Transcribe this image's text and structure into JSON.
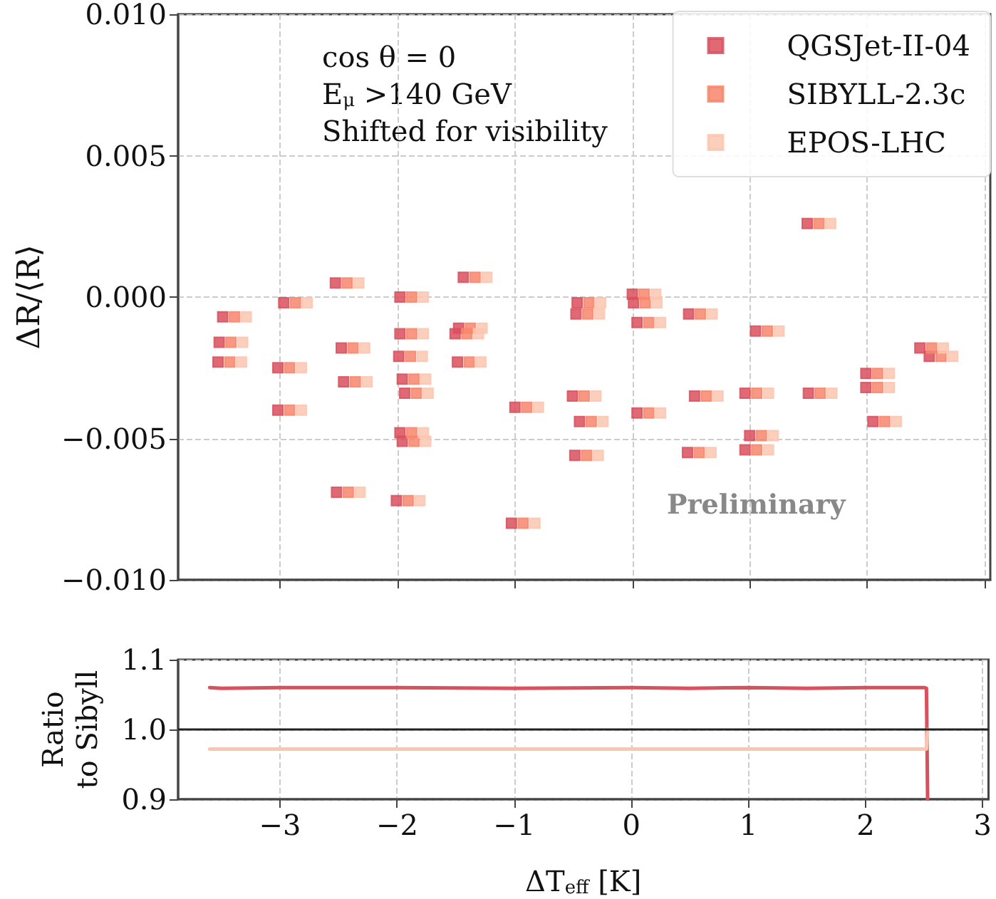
{
  "chart_data": [
    {
      "type": "scatter",
      "ylabel": "ΔR/⟨R⟩",
      "annotations": [
        "cos θ = 0",
        "E$_{μ}$ >140 GeV",
        "Shifted for visibility",
        "Preliminary"
      ],
      "marker": "square",
      "grid": true,
      "legend": "top right",
      "tick_labels": "y",
      "xlim": [
        -3.87,
        3.05
      ],
      "xticks": [
        -3,
        -2,
        -1,
        0,
        1,
        2,
        3
      ],
      "ylim": [
        -0.01,
        0.01
      ],
      "yticks": [
        {
          "value": -0.01,
          "label": "−0.010"
        },
        {
          "value": -0.005,
          "label": "−0.005"
        },
        {
          "value": 0,
          "label": "0.000"
        },
        {
          "value": 0.005,
          "label": "0.005"
        },
        {
          "value": 0.01,
          "label": "0.010"
        }
      ],
      "series": [
        {
          "name": "QGSJet-II-04",
          "color": "#d9505e",
          "x": [
            -3.49,
            -3.52,
            -3.53,
            -2.97,
            -3.02,
            -3.02,
            -2.53,
            -2.48,
            -2.46,
            -2.52,
            -1.98,
            -1.98,
            -1.99,
            -1.96,
            -1.94,
            -1.98,
            -1.96,
            -2.01,
            -1.44,
            -1.48,
            -1.51,
            -1.49,
            -1.03,
            -1.0,
            -0.47,
            -0.48,
            -0.51,
            -0.45,
            -0.49,
            0.0,
            0.01,
            0.04,
            0.04,
            0.48,
            0.53,
            0.47,
            1.05,
            0.96,
            1.0,
            0.96,
            1.49,
            1.5,
            1.99,
            1.99,
            2.05,
            2.45,
            2.53
          ],
          "values": [
            -0.0007,
            -0.0016,
            -0.0023,
            -0.0002,
            -0.0025,
            -0.004,
            0.0005,
            -0.0018,
            -0.003,
            -0.0069,
            0.0,
            -0.0013,
            -0.0021,
            -0.0029,
            -0.0034,
            -0.0048,
            -0.0051,
            -0.0072,
            0.0007,
            -0.0011,
            -0.0013,
            -0.0023,
            -0.008,
            -0.0039,
            -0.0002,
            -0.0006,
            -0.0035,
            -0.0044,
            -0.0056,
            0.0001,
            -0.0002,
            -0.0009,
            -0.0041,
            -0.0006,
            -0.0035,
            -0.0055,
            -0.0012,
            -0.0034,
            -0.0049,
            -0.0054,
            0.0026,
            -0.0034,
            -0.0027,
            -0.0032,
            -0.0044,
            -0.0018,
            -0.0021
          ]
        },
        {
          "name": "SIBYLL-2.3c",
          "color": "#f8866c",
          "x": [
            -3.39,
            -3.42,
            -3.43,
            -2.87,
            -2.92,
            -2.92,
            -2.43,
            -2.38,
            -2.36,
            -2.42,
            -1.88,
            -1.88,
            -1.89,
            -1.86,
            -1.84,
            -1.88,
            -1.86,
            -1.91,
            -1.34,
            -1.38,
            -1.41,
            -1.39,
            -0.93,
            -0.9,
            -0.37,
            -0.38,
            -0.41,
            -0.35,
            -0.39,
            0.1,
            0.11,
            0.14,
            0.14,
            0.58,
            0.63,
            0.57,
            1.15,
            1.06,
            1.1,
            1.06,
            1.59,
            1.6,
            2.09,
            2.09,
            2.15,
            2.55,
            2.63
          ],
          "values": [
            -0.0007,
            -0.0016,
            -0.0023,
            -0.0002,
            -0.0025,
            -0.004,
            0.0005,
            -0.0018,
            -0.003,
            -0.0069,
            0.0,
            -0.0013,
            -0.0021,
            -0.0029,
            -0.0034,
            -0.0048,
            -0.0051,
            -0.0072,
            0.0007,
            -0.0011,
            -0.0013,
            -0.0023,
            -0.008,
            -0.0039,
            -0.0002,
            -0.0006,
            -0.0035,
            -0.0044,
            -0.0056,
            0.0001,
            -0.0002,
            -0.0009,
            -0.0041,
            -0.0006,
            -0.0035,
            -0.0055,
            -0.0012,
            -0.0034,
            -0.0049,
            -0.0054,
            0.0026,
            -0.0034,
            -0.0027,
            -0.0032,
            -0.0044,
            -0.0018,
            -0.0021
          ]
        },
        {
          "name": "EPOS-LHC",
          "color": "#fcc5b0",
          "x": [
            -3.29,
            -3.32,
            -3.33,
            -2.77,
            -2.82,
            -2.82,
            -2.33,
            -2.28,
            -2.26,
            -2.32,
            -1.78,
            -1.78,
            -1.79,
            -1.76,
            -1.74,
            -1.78,
            -1.76,
            -1.81,
            -1.24,
            -1.28,
            -1.31,
            -1.29,
            -0.83,
            -0.8,
            -0.27,
            -0.28,
            -0.31,
            -0.25,
            -0.29,
            0.2,
            0.21,
            0.24,
            0.24,
            0.68,
            0.73,
            0.67,
            1.25,
            1.16,
            1.2,
            1.16,
            1.69,
            1.7,
            2.19,
            2.19,
            2.25,
            2.65,
            2.73
          ],
          "values": [
            -0.0007,
            -0.0016,
            -0.0023,
            -0.0002,
            -0.0025,
            -0.004,
            0.0005,
            -0.0018,
            -0.003,
            -0.0069,
            0.0,
            -0.0013,
            -0.0021,
            -0.0029,
            -0.0034,
            -0.0048,
            -0.0051,
            -0.0072,
            0.0007,
            -0.0011,
            -0.0013,
            -0.0023,
            -0.008,
            -0.0039,
            -0.0002,
            -0.0006,
            -0.0035,
            -0.0044,
            -0.0056,
            0.0001,
            -0.0002,
            -0.0009,
            -0.0041,
            -0.0006,
            -0.0035,
            -0.0055,
            -0.0012,
            -0.0034,
            -0.0049,
            -0.0054,
            0.0026,
            -0.0034,
            -0.0027,
            -0.0032,
            -0.0044,
            -0.0018,
            -0.0021
          ]
        }
      ]
    },
    {
      "type": "line",
      "xlabel": "ΔT$_{eff}$ [K]",
      "ylabel": "Ratio\nto Sibyll",
      "grid": true,
      "marker": "none",
      "line_style": "solid",
      "xlim": [
        -3.87,
        3.05
      ],
      "xticks": [
        {
          "value": -3,
          "label": "−3"
        },
        {
          "value": -2,
          "label": "−2"
        },
        {
          "value": -1,
          "label": "−1"
        },
        0,
        1,
        2,
        3
      ],
      "ylim": [
        0.9,
        1.1
      ],
      "yticks": [
        {
          "value": 0.9,
          "label": "0.9"
        },
        {
          "value": 1.0,
          "label": "1.0"
        },
        {
          "value": 1.1,
          "label": "1.1"
        }
      ],
      "ref_lines": [
        {
          "axis": "y",
          "value": 1.0,
          "color": "#222222"
        }
      ],
      "series": [
        {
          "color": "#d9505e",
          "x": [
            -3.6,
            -3.5,
            -3,
            -2,
            -1,
            0,
            0.5,
            1,
            1.5,
            2,
            2.5,
            2.52,
            2.53
          ],
          "values": [
            1.06,
            1.059,
            1.06,
            1.06,
            1.059,
            1.06,
            1.059,
            1.06,
            1.059,
            1.06,
            1.06,
            1.059,
            0.9
          ]
        },
        {
          "color": "#fcc5b0",
          "x": [
            -3.6,
            -3,
            -2,
            -1,
            0,
            1,
            2,
            2.52,
            2.53
          ],
          "values": [
            0.972,
            0.972,
            0.972,
            0.972,
            0.972,
            0.972,
            0.972,
            0.972,
            1.0
          ]
        }
      ]
    }
  ]
}
